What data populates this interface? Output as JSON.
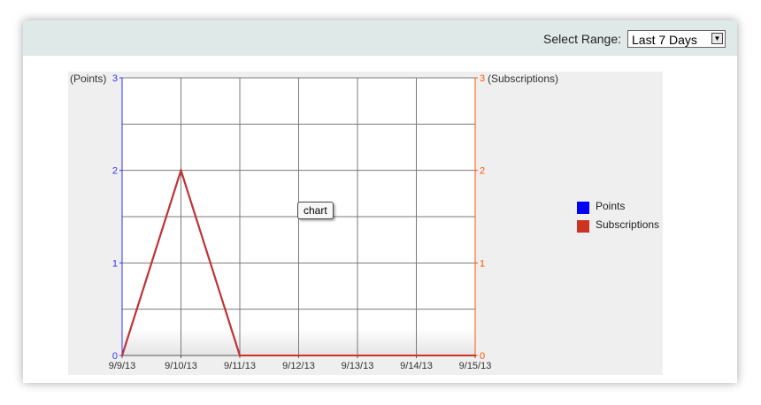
{
  "toolbar": {
    "range_label": "Select Range:",
    "range_value": "Last 7 Days",
    "dropdown_arrow": "▼"
  },
  "tooltip": "chart",
  "chart_data": {
    "type": "line",
    "x": [
      "9/9/13",
      "9/10/13",
      "9/11/13",
      "9/12/13",
      "9/13/13",
      "9/14/13",
      "9/15/13"
    ],
    "ylabel_left": "(Points)",
    "ylabel_right": "(Subscriptions)",
    "ylim_left": [
      0,
      3
    ],
    "ylim_right": [
      0,
      3
    ],
    "yticks_left": [
      0,
      1,
      2,
      3
    ],
    "yticks_right": [
      0,
      1,
      2,
      3
    ],
    "grid": true,
    "legend_position": "right",
    "series": [
      {
        "name": "Points",
        "axis": "left",
        "color": "#0000ff",
        "values": [
          0,
          2,
          0,
          0,
          0,
          0,
          0
        ]
      },
      {
        "name": "Subscriptions",
        "axis": "right",
        "color": "#cc3322",
        "values": [
          0,
          2,
          0,
          0,
          0,
          0,
          0
        ]
      }
    ],
    "left_axis_color": "#3333ff",
    "right_axis_color": "#ff5500"
  }
}
